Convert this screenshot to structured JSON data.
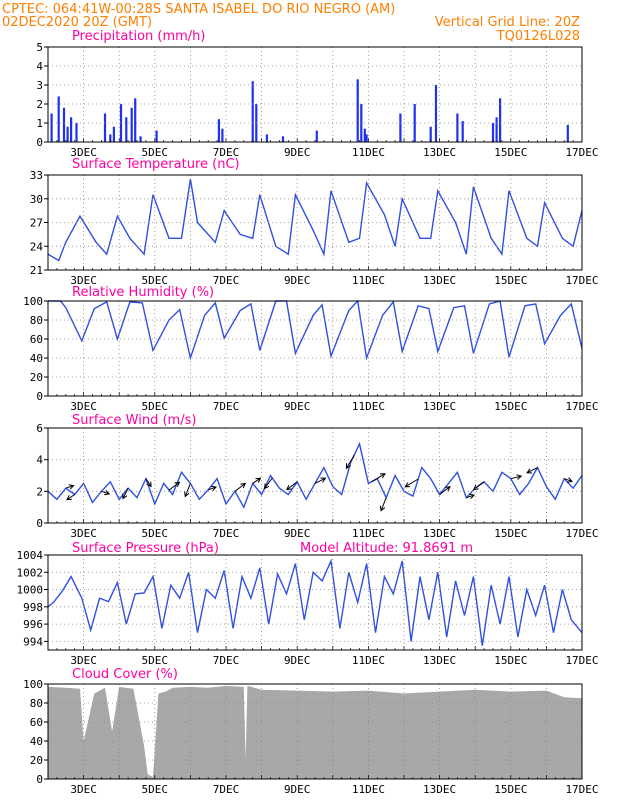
{
  "header": {
    "left_line1": "CPTEC:   064:41W-00:28S  SANTA ISABEL DO RIO NEGRO (AM)",
    "left_line2": "02DEC2020 20Z (GMT)",
    "right_line2": "Vertical Grid Line: 20Z",
    "right_line3": "TQ0126L028"
  },
  "x_axis": {
    "labels": [
      "3DEC",
      "5DEC",
      "7DEC",
      "9DEC",
      "11DEC",
      "13DEC",
      "15DEC",
      "17DEC"
    ],
    "label_days": [
      3,
      5,
      7,
      9,
      11,
      13,
      15,
      17
    ],
    "minor_ticks": "hourly",
    "vertical_grid_days": [
      3,
      4,
      5,
      6,
      7,
      8,
      9,
      10,
      11,
      12,
      13,
      14,
      15,
      16,
      17
    ]
  },
  "panels": {
    "precip": {
      "title": "Precipitation (mm/h)"
    },
    "temp": {
      "title": "Surface Temperature (nC)"
    },
    "rh": {
      "title": "Relative Humidity (%)"
    },
    "wind": {
      "title": "Surface Wind (m/s)"
    },
    "pres": {
      "title": "Surface Pressure (hPa)",
      "extra": "Model Altitude: 91.8691 m"
    },
    "cloud": {
      "title": "Cloud Cover (%)"
    }
  },
  "colors": {
    "line": "#3050e0",
    "bars": "#2030f0",
    "cloud": "#a8a8a8",
    "title": "#ff00a0",
    "header": "#ff7f00"
  },
  "chart_data": [
    {
      "type": "bar",
      "title": "Precipitation (mm/h)",
      "x_unit": "day of December 2020",
      "ylim": [
        0,
        5
      ],
      "yticks": [
        0,
        1,
        2,
        3,
        4,
        5
      ],
      "grid": true,
      "x": [
        2.1,
        2.3,
        2.45,
        2.55,
        2.65,
        2.8,
        3.6,
        3.75,
        3.85,
        4.05,
        4.2,
        4.35,
        4.45,
        4.6,
        5.05,
        6.8,
        6.9,
        7.75,
        7.85,
        8.15,
        8.6,
        9.55,
        10.7,
        10.8,
        10.9,
        10.95,
        11.9,
        12.3,
        12.75,
        12.9,
        13.5,
        13.65,
        14.5,
        14.6,
        14.7,
        16.6
      ],
      "values": [
        1.5,
        2.4,
        1.8,
        0.8,
        1.3,
        1.0,
        1.5,
        0.4,
        0.8,
        2.0,
        1.3,
        1.8,
        2.3,
        0.3,
        0.6,
        1.2,
        0.7,
        3.2,
        2.0,
        0.4,
        0.3,
        0.6,
        3.3,
        2.0,
        0.7,
        0.4,
        1.5,
        2.0,
        0.8,
        3.0,
        1.5,
        1.1,
        1.0,
        1.3,
        2.3,
        0.9
      ]
    },
    {
      "type": "line",
      "title": "Surface Temperature (nC)",
      "x_unit": "day of December 2020",
      "ylim": [
        21,
        33
      ],
      "yticks": [
        21,
        24,
        27,
        30,
        33
      ],
      "grid": true,
      "x": [
        2.0,
        2.3,
        2.5,
        2.9,
        3.35,
        3.65,
        3.95,
        4.3,
        4.7,
        4.95,
        5.4,
        5.75,
        6.0,
        6.2,
        6.7,
        6.95,
        7.4,
        7.75,
        7.95,
        8.4,
        8.75,
        8.95,
        9.45,
        9.75,
        9.95,
        10.45,
        10.75,
        10.95,
        11.45,
        11.75,
        11.95,
        12.45,
        12.75,
        12.95,
        13.45,
        13.75,
        13.95,
        14.45,
        14.75,
        14.95,
        15.45,
        15.75,
        15.95,
        16.45,
        16.75,
        17.0
      ],
      "values": [
        23.0,
        22.2,
        24.5,
        27.8,
        24.5,
        23.0,
        27.8,
        25.0,
        23.0,
        30.5,
        25.0,
        25.0,
        32.5,
        27.0,
        24.5,
        28.5,
        25.5,
        25.0,
        30.5,
        24.0,
        23.0,
        30.5,
        26.0,
        23.0,
        31.0,
        24.5,
        25.0,
        32.0,
        28.0,
        24.0,
        30.0,
        25.0,
        25.0,
        31.0,
        27.0,
        23.0,
        31.5,
        25.0,
        23.0,
        31.0,
        25.0,
        24.0,
        29.5,
        25.0,
        24.0,
        28.5
      ]
    },
    {
      "type": "line",
      "title": "Relative Humidity (%)",
      "x_unit": "day of December 2020",
      "ylim": [
        0,
        100
      ],
      "yticks": [
        0,
        20,
        40,
        60,
        80,
        100
      ],
      "grid": true,
      "x": [
        2.0,
        2.35,
        2.5,
        2.95,
        3.3,
        3.65,
        3.95,
        4.3,
        4.65,
        4.95,
        5.4,
        5.7,
        6.0,
        6.4,
        6.7,
        6.95,
        7.4,
        7.7,
        7.95,
        8.4,
        8.7,
        8.95,
        9.45,
        9.7,
        9.95,
        10.45,
        10.7,
        10.95,
        11.4,
        11.7,
        11.95,
        12.4,
        12.7,
        12.95,
        13.4,
        13.7,
        13.95,
        14.4,
        14.7,
        14.95,
        15.4,
        15.7,
        15.95,
        16.4,
        16.7,
        17.0
      ],
      "values": [
        100,
        100,
        93,
        58,
        92,
        99,
        60,
        99,
        98,
        48,
        80,
        91,
        40,
        85,
        98,
        61,
        90,
        97,
        48,
        100,
        100,
        45,
        85,
        96,
        42,
        90,
        100,
        40,
        85,
        99,
        47,
        95,
        92,
        47,
        93,
        95,
        45,
        97,
        100,
        41,
        95,
        97,
        55,
        85,
        97,
        50
      ]
    },
    {
      "type": "line",
      "title": "Surface Wind (m/s)",
      "x_unit": "day of December 2020",
      "ylim": [
        0,
        6
      ],
      "yticks": [
        0,
        2,
        4,
        6
      ],
      "grid": true,
      "x": [
        2.0,
        2.25,
        2.5,
        2.75,
        3.0,
        3.25,
        3.5,
        3.75,
        4.0,
        4.25,
        4.5,
        4.75,
        5.0,
        5.25,
        5.5,
        5.75,
        6.0,
        6.25,
        6.5,
        6.75,
        7.0,
        7.25,
        7.5,
        7.75,
        8.0,
        8.25,
        8.5,
        8.75,
        9.0,
        9.25,
        9.5,
        9.75,
        10.0,
        10.25,
        10.5,
        10.75,
        11.0,
        11.25,
        11.5,
        11.75,
        12.0,
        12.25,
        12.5,
        12.75,
        13.0,
        13.25,
        13.5,
        13.75,
        14.0,
        14.25,
        14.5,
        14.75,
        15.0,
        15.25,
        15.5,
        15.75,
        16.0,
        16.25,
        16.5,
        16.75,
        17.0
      ],
      "values": [
        2.0,
        1.5,
        2.2,
        1.8,
        2.5,
        1.3,
        2.0,
        2.6,
        1.5,
        2.2,
        1.6,
        2.8,
        1.2,
        2.5,
        1.8,
        3.2,
        2.5,
        1.5,
        2.1,
        2.8,
        1.2,
        2.0,
        1.0,
        2.5,
        1.8,
        3.0,
        2.2,
        1.8,
        2.6,
        1.5,
        2.5,
        3.5,
        2.3,
        1.8,
        3.8,
        5.0,
        2.5,
        2.8,
        1.6,
        3.0,
        2.0,
        1.7,
        3.5,
        2.8,
        1.8,
        2.5,
        3.2,
        1.6,
        2.2,
        2.6,
        2.0,
        3.2,
        2.8,
        1.8,
        2.5,
        3.5,
        2.3,
        1.5,
        2.8,
        2.2,
        3.0
      ],
      "arrows_note": "wind vectors drawn along the curve",
      "arrows": [
        {
          "x": 2.5,
          "u": 0.3,
          "v": 0.1
        },
        {
          "x": 2.75,
          "u": -0.3,
          "v": -0.2
        },
        {
          "x": 3.5,
          "u": 0.3,
          "v": -0.1
        },
        {
          "x": 4.25,
          "u": -0.2,
          "v": -0.4
        },
        {
          "x": 4.75,
          "u": 0.2,
          "v": -0.3
        },
        {
          "x": 5.4,
          "u": 0.4,
          "v": 0.3
        },
        {
          "x": 6.0,
          "u": -0.2,
          "v": -0.5
        },
        {
          "x": 6.5,
          "u": 0.3,
          "v": 0.1
        },
        {
          "x": 7.25,
          "u": 0.4,
          "v": 0.3
        },
        {
          "x": 7.75,
          "u": 0.3,
          "v": 0.2
        },
        {
          "x": 8.3,
          "u": -0.3,
          "v": -0.4
        },
        {
          "x": 9.0,
          "u": -0.4,
          "v": -0.3
        },
        {
          "x": 9.5,
          "u": 0.4,
          "v": 0.2
        },
        {
          "x": 10.6,
          "u": -0.3,
          "v": -0.5
        },
        {
          "x": 11.1,
          "u": 0.5,
          "v": 0.3
        },
        {
          "x": 11.5,
          "u": -0.2,
          "v": -0.5
        },
        {
          "x": 12.4,
          "u": -0.5,
          "v": -0.3
        },
        {
          "x": 13.0,
          "u": 0.4,
          "v": 0.3
        },
        {
          "x": 13.75,
          "u": 0.3,
          "v": 0.1
        },
        {
          "x": 14.25,
          "u": -0.4,
          "v": -0.3
        },
        {
          "x": 15.0,
          "u": 0.4,
          "v": 0.1
        },
        {
          "x": 15.75,
          "u": -0.4,
          "v": -0.2
        },
        {
          "x": 16.5,
          "u": 0.3,
          "v": -0.1
        }
      ]
    },
    {
      "type": "line",
      "title": "Surface Pressure (hPa)",
      "subtitle": "Model Altitude: 91.8691 m",
      "x_unit": "day of December 2020",
      "ylim": [
        993,
        1004
      ],
      "yticks": [
        994,
        996,
        998,
        1000,
        1002,
        1004
      ],
      "grid": true,
      "x": [
        2.0,
        2.15,
        2.4,
        2.65,
        2.95,
        3.2,
        3.45,
        3.7,
        3.95,
        4.2,
        4.45,
        4.7,
        4.95,
        5.2,
        5.45,
        5.7,
        5.95,
        6.2,
        6.45,
        6.7,
        6.95,
        7.2,
        7.45,
        7.7,
        7.95,
        8.2,
        8.45,
        8.7,
        8.95,
        9.2,
        9.45,
        9.7,
        9.95,
        10.2,
        10.45,
        10.7,
        10.95,
        11.2,
        11.45,
        11.7,
        11.95,
        12.2,
        12.45,
        12.7,
        12.95,
        13.2,
        13.45,
        13.7,
        13.95,
        14.2,
        14.45,
        14.7,
        14.95,
        15.2,
        15.45,
        15.7,
        15.95,
        16.2,
        16.45,
        16.7,
        17.0
      ],
      "values": [
        998.0,
        998.5,
        999.8,
        1001.5,
        999.0,
        995.3,
        999.0,
        998.6,
        1000.8,
        996.0,
        999.5,
        999.6,
        1001.5,
        995.5,
        1000.5,
        999.0,
        1002.0,
        995.0,
        1000.0,
        999.0,
        1002.2,
        995.5,
        1001.5,
        999.0,
        1002.5,
        996.0,
        1001.8,
        999.5,
        1003.0,
        996.5,
        1002.0,
        1001.0,
        1003.3,
        995.5,
        1002.0,
        998.5,
        1003.0,
        995.0,
        1001.5,
        999.5,
        1003.3,
        994.0,
        1001.5,
        996.5,
        1002.0,
        994.5,
        1001.0,
        997.0,
        1001.5,
        993.5,
        1000.5,
        996.0,
        1001.5,
        994.5,
        1000.0,
        997.0,
        1000.5,
        995.0,
        1000.0,
        996.5,
        995.0
      ]
    },
    {
      "type": "area",
      "title": "Cloud Cover (%)",
      "x_unit": "day of December 2020",
      "ylim": [
        0,
        100
      ],
      "yticks": [
        0,
        20,
        40,
        60,
        80,
        100
      ],
      "grid": true,
      "x": [
        2.0,
        2.5,
        2.9,
        3.0,
        3.3,
        3.6,
        3.8,
        4.0,
        4.4,
        4.7,
        4.8,
        4.95,
        5.1,
        5.3,
        5.5,
        6.0,
        6.5,
        7.0,
        7.5,
        7.55,
        7.6,
        8.0,
        9.0,
        10.0,
        11.0,
        12.0,
        13.0,
        14.0,
        15.0,
        16.0,
        16.5,
        17.0
      ],
      "values": [
        97,
        96,
        95,
        40,
        90,
        96,
        50,
        97,
        95,
        35,
        5,
        2,
        90,
        92,
        96,
        97,
        96,
        98,
        97,
        20,
        98,
        94,
        93,
        92,
        93,
        90,
        92,
        94,
        92,
        93,
        86,
        85
      ]
    }
  ]
}
